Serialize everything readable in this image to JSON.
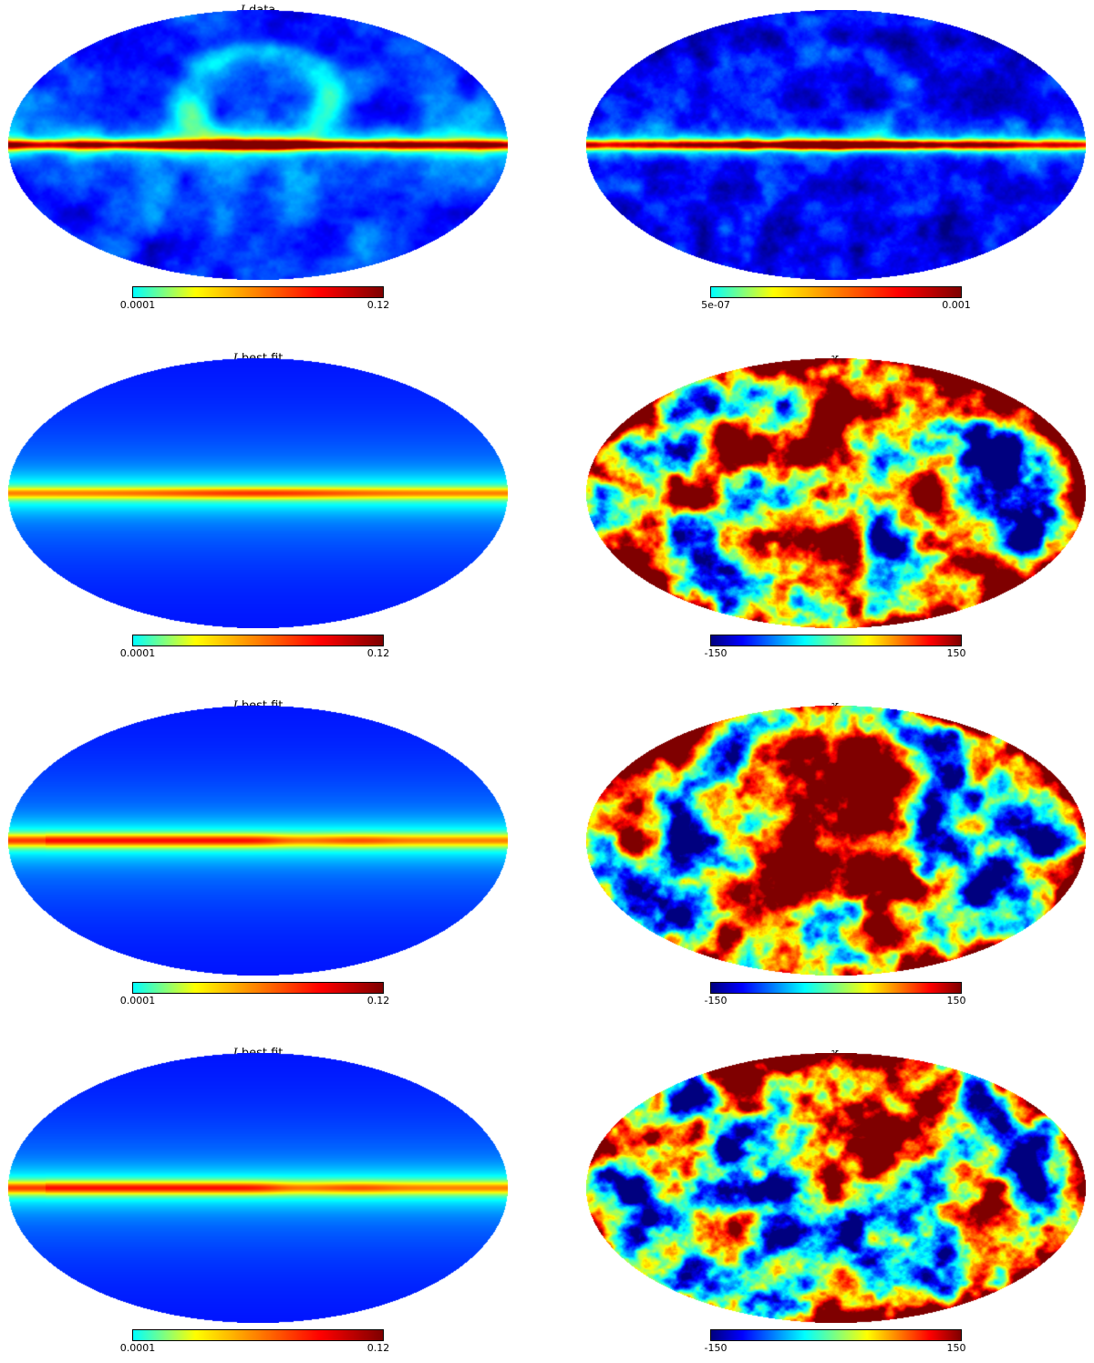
{
  "panels": [
    {
      "row": 0,
      "col": 0,
      "kind": "intensity_data",
      "title_symbol": "I",
      "title_text": " data",
      "cbar_min_label": "0.0001",
      "cbar_max_label": "0.12",
      "colormap": "yellow-red"
    },
    {
      "row": 0,
      "col": 1,
      "kind": "intensity_error",
      "title_symbol": "",
      "title_text": "",
      "cbar_min_label": "5e-07",
      "cbar_max_label": "0.001",
      "colormap": "yellow-red"
    },
    {
      "row": 1,
      "col": 0,
      "kind": "model_a",
      "title_symbol": "I",
      "title_text": " best fit",
      "cbar_min_label": "0.0001",
      "cbar_max_label": "0.12",
      "colormap": "yellow-red"
    },
    {
      "row": 1,
      "col": 1,
      "kind": "residual",
      "title_symbol": "χ",
      "title_sub": "I",
      "title_text": "",
      "cbar_min_label": "-150",
      "cbar_max_label": "150",
      "colormap": "jet"
    },
    {
      "row": 2,
      "col": 0,
      "kind": "model_b",
      "title_symbol": "I",
      "title_text": " best fit",
      "cbar_min_label": "0.0001",
      "cbar_max_label": "0.12",
      "colormap": "yellow-red"
    },
    {
      "row": 2,
      "col": 1,
      "kind": "residual",
      "title_symbol": "χ",
      "title_sub": "I",
      "title_text": "",
      "cbar_min_label": "-150",
      "cbar_max_label": "150",
      "colormap": "jet"
    },
    {
      "row": 3,
      "col": 0,
      "kind": "model_c",
      "title_symbol": "I",
      "title_text": " best fit",
      "cbar_min_label": "0.0001",
      "cbar_max_label": "0.12",
      "colormap": "yellow-red"
    },
    {
      "row": 3,
      "col": 1,
      "kind": "residual",
      "title_symbol": "χ",
      "title_sub": "I",
      "title_text": "",
      "cbar_min_label": "-150",
      "cbar_max_label": "150",
      "colormap": "jet"
    }
  ],
  "colors": {
    "jet_stops": [
      "#00007f",
      "#0000ff",
      "#007fff",
      "#00ffff",
      "#7fff7f",
      "#ffff00",
      "#ff7f00",
      "#ff0000",
      "#7f0000"
    ],
    "yellowred_stops": [
      "#00ffff",
      "#ffff00",
      "#ff7f00",
      "#ff0000",
      "#7f0000"
    ]
  }
}
